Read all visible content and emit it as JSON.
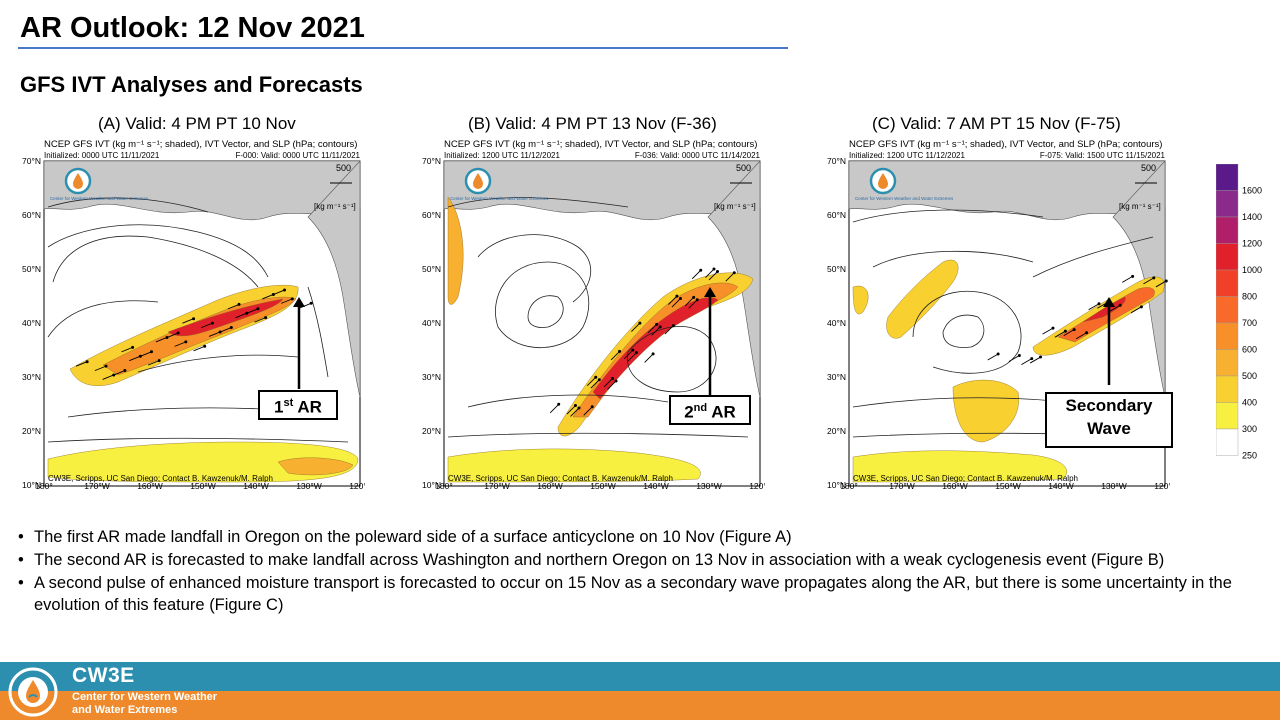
{
  "header": {
    "title": "AR Outlook: 12 Nov 2021",
    "subtitle": "GFS IVT Analyses and Forecasts"
  },
  "panels": [
    {
      "caption": "(A) Valid: 4 PM PT 10 Nov",
      "product": "NCEP GFS IVT (kg m⁻¹ s⁻¹; shaded), IVT Vector, and SLP (hPa; contours)",
      "initialized": "Initialized: 0000 UTC 11/11/2021",
      "valid": "F-000: Valid: 0000 UTC 11/11/2021",
      "callout_main": "1",
      "callout_sup": "st",
      "callout_tail": " AR"
    },
    {
      "caption": "(B) Valid: 4 PM PT 13 Nov (F-36)",
      "product": "NCEP GFS IVT (kg m⁻¹ s⁻¹; shaded), IVT Vector, and SLP (hPa; contours)",
      "initialized": "Initialized: 1200 UTC 11/12/2021",
      "valid": "F-036: Valid: 0000 UTC 11/14/2021",
      "callout_main": "2",
      "callout_sup": "nd",
      "callout_tail": " AR"
    },
    {
      "caption": "(C) Valid: 7 AM PT 15 Nov (F-75)",
      "product": "NCEP GFS IVT (kg m⁻¹ s⁻¹; shaded), IVT Vector, and SLP (hPa; contours)",
      "initialized": "Initialized: 1200 UTC 11/12/2021",
      "valid": "F-075: Valid: 1500 UTC 11/15/2021",
      "callout_line1": "Secondary",
      "callout_line2": "Wave"
    }
  ],
  "map": {
    "lat_labels": [
      "70°N",
      "60°N",
      "50°N",
      "40°N",
      "30°N",
      "20°N",
      "10°N"
    ],
    "lon_labels": [
      "180°",
      "170°W",
      "160°W",
      "150°W",
      "140°W",
      "130°W",
      "120°W"
    ],
    "ref_vector": "500",
    "ref_units": "[kg m⁻¹ s⁻¹]",
    "logo_text": "Center for Western Weather and Water Extremes",
    "credit": "CW3E, Scripps, UC San Diego; Contact B. Kawzenuk/M. Ralph"
  },
  "colorbar": {
    "labels": [
      "1600",
      "1400",
      "1200",
      "1000",
      "800",
      "700",
      "600",
      "500",
      "400",
      "300",
      "250"
    ],
    "colors": [
      "#5a1a8a",
      "#8a2a8a",
      "#b0206a",
      "#e0202a",
      "#f0402a",
      "#f86a2a",
      "#f8902a",
      "#f8b030",
      "#f8d030",
      "#f8f040",
      "#ffffff"
    ]
  },
  "bullets": [
    "The first AR made landfall in Oregon on the poleward side of a surface anticyclone on 10 Nov (Figure A)",
    "The second AR is forecasted to make landfall across Washington and northern Oregon on 13 Nov in association with a weak cyclogenesis event (Figure B)",
    "A second pulse of enhanced moisture transport is forecasted to occur on 15 Nov as a secondary wave propagates along the AR, but there is some uncertainty in the evolution of this feature (Figure C)"
  ],
  "footer": {
    "brand": "CW3E",
    "org_line1": "Center for Western Weather",
    "org_line2": "and Water Extremes"
  },
  "colors": {
    "accent_rule": "#4a78c8",
    "footer_blue": "#2d8fb0",
    "footer_orange": "#ee8a2b"
  }
}
